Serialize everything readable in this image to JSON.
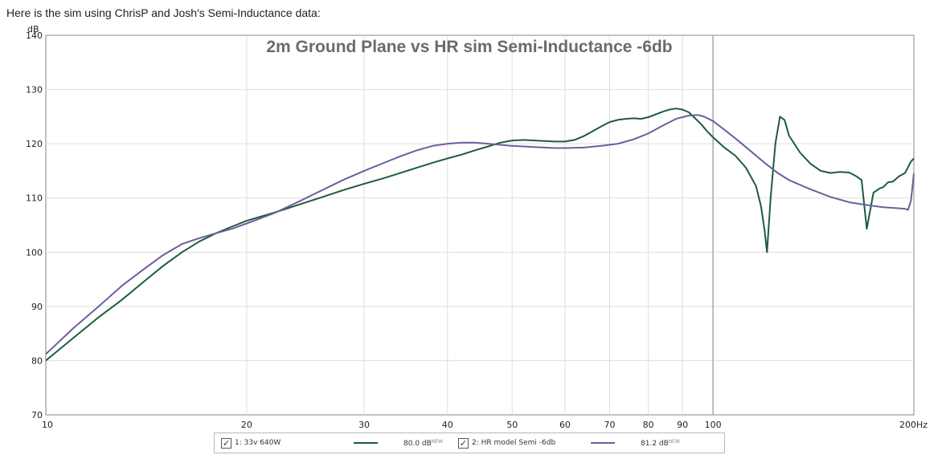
{
  "intro_text": "Here is the sim using ChrisP and Josh's Semi-Inductance data:",
  "chart_data": {
    "type": "line",
    "title": "2m Ground Plane vs HR sim Semi-Inductance -6db",
    "ylabel": "dB",
    "xscale": "log",
    "xlim": [
      10,
      200
    ],
    "ylim": [
      70,
      140
    ],
    "yticks": [
      70,
      80,
      90,
      100,
      110,
      120,
      130,
      140
    ],
    "xticks": [
      10,
      20,
      30,
      40,
      50,
      60,
      70,
      80,
      90,
      100,
      200
    ],
    "xtick_labels": [
      "10",
      "20",
      "30",
      "40",
      "50",
      "60",
      "70",
      "80",
      "90",
      "100",
      "200Hz"
    ],
    "grid": true,
    "legend_position": "bottom",
    "series": [
      {
        "name": "1: 33v 640W",
        "color": "#1e5b3c",
        "value_label": "80.0 dB",
        "x": [
          10,
          11,
          12,
          13,
          14,
          15,
          16,
          17,
          18,
          19,
          20,
          22,
          24,
          26,
          28,
          30,
          32,
          34,
          36,
          38,
          40,
          42,
          44,
          46,
          48,
          50,
          52,
          54,
          56,
          58,
          60,
          62,
          64,
          66,
          68,
          70,
          72,
          74,
          76,
          78,
          80,
          82,
          84,
          86,
          88,
          90,
          92,
          94,
          96,
          98,
          100,
          104,
          108,
          112,
          116,
          118,
          119.5,
          120.5,
          122,
          124,
          126,
          128,
          130,
          135,
          140,
          145,
          150,
          155,
          160,
          164,
          167,
          170,
          174,
          178,
          180,
          183,
          186,
          190,
          194,
          198,
          200
        ],
        "y": [
          80,
          84.2,
          88,
          91.2,
          94.5,
          97.5,
          100,
          102,
          103.5,
          104.7,
          105.8,
          107.3,
          108.8,
          110.2,
          111.5,
          112.6,
          113.6,
          114.6,
          115.6,
          116.5,
          117.3,
          118,
          118.8,
          119.5,
          120.2,
          120.6,
          120.7,
          120.6,
          120.5,
          120.4,
          120.4,
          120.7,
          121.4,
          122.3,
          123.2,
          124,
          124.4,
          124.6,
          124.7,
          124.6,
          124.9,
          125.4,
          125.9,
          126.3,
          126.5,
          126.3,
          125.8,
          124.7,
          123.6,
          122.3,
          121.2,
          119.3,
          117.8,
          115.6,
          112.2,
          108.5,
          104,
          100,
          110,
          120,
          125,
          124.4,
          121.5,
          118.4,
          116.3,
          115,
          114.6,
          114.8,
          114.7,
          114,
          113.3,
          104.3,
          111,
          111.8,
          112,
          112.9,
          113,
          114,
          114.6,
          116.7,
          117.3
        ]
      },
      {
        "name": "2: HR model Semi -6db",
        "color": "#6a5f9e",
        "value_label": "81.2 dB",
        "x": [
          10,
          11,
          12,
          13,
          14,
          15,
          16,
          17,
          18,
          19,
          20,
          22,
          24,
          26,
          28,
          30,
          32,
          34,
          36,
          38,
          40,
          42,
          44,
          46,
          48,
          50,
          52,
          54,
          56,
          58,
          60,
          64,
          68,
          72,
          76,
          80,
          84,
          88,
          92,
          95,
          97,
          100,
          105,
          110,
          115,
          120,
          125,
          130,
          140,
          150,
          160,
          170,
          180,
          190,
          194,
          196,
          198,
          200
        ],
        "y": [
          81.2,
          86,
          90,
          93.8,
          96.8,
          99.5,
          101.5,
          102.6,
          103.5,
          104.3,
          105.3,
          107.2,
          109.4,
          111.5,
          113.4,
          115,
          116.4,
          117.7,
          118.8,
          119.6,
          120,
          120.2,
          120.2,
          120,
          119.8,
          119.6,
          119.5,
          119.4,
          119.3,
          119.2,
          119.2,
          119.3,
          119.6,
          120,
          120.8,
          121.9,
          123.3,
          124.6,
          125.2,
          125.3,
          125,
          124.2,
          122.2,
          120.2,
          118.2,
          116.3,
          114.6,
          113.3,
          111.6,
          110.2,
          109.2,
          108.7,
          108.3,
          108.1,
          108,
          107.8,
          109.5,
          114.5
        ]
      }
    ]
  },
  "legend": {
    "items": [
      {
        "label": "1: 33v 640W",
        "value": "80.0 dB",
        "badge": "NEW",
        "check": "✓"
      },
      {
        "label": "2: HR model Semi -6db",
        "value": "81.2 dB",
        "badge": "NEW",
        "check": "✓"
      }
    ]
  }
}
